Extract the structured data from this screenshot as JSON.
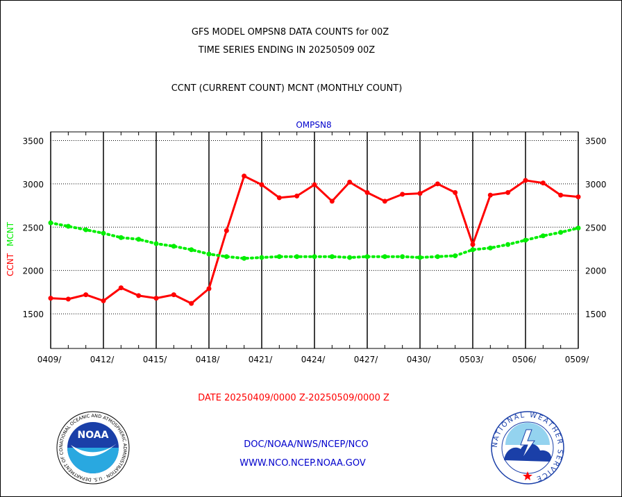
{
  "header": {
    "line1": "GFS MODEL OMPSN8 DATA COUNTS for 00Z",
    "line2": "TIME SERIES ENDING IN 20250509 00Z",
    "line3": "CCNT (CURRENT COUNT) MCNT (MONTHLY COUNT)"
  },
  "footer": {
    "date_range": "DATE 20250409/0000 Z-20250509/0000 Z",
    "org_path": "DOC/NOAA/NWS/NCEP/NCO",
    "website": "WWW.NCO.NCEP.NOAA.GOV"
  },
  "logos": {
    "noaa_text": "NOAA",
    "noaa_ring": "NATIONAL OCEANIC AND ATMOSPHERIC ADMINISTRATION · U.S. DEPARTMENT OF COMMERCE",
    "nws_ring": "NATIONAL WEATHER SERVICE"
  },
  "chart_data": {
    "type": "line",
    "title": "OMPSN8",
    "ylabel_parts": [
      {
        "text": "CCNT",
        "color": "#ff0000"
      },
      {
        "text": "MCNT",
        "color": "#00ee00"
      }
    ],
    "xlim": [
      0,
      30
    ],
    "ylim": [
      1100,
      3600
    ],
    "yticks": [
      1500,
      2000,
      2500,
      3000,
      3500
    ],
    "xtick_labels": [
      "0409/",
      "0412/",
      "0415/",
      "0418/",
      "0421/",
      "0424/",
      "0427/",
      "0430/",
      "0503/",
      "0506/",
      "0509/"
    ],
    "xtick_days": [
      0,
      3,
      6,
      9,
      12,
      15,
      18,
      21,
      24,
      27,
      30
    ],
    "grid": true,
    "series": [
      {
        "name": "CCNT",
        "color": "#ff0000",
        "style": "solid",
        "values": [
          1680,
          1670,
          1720,
          1650,
          1800,
          1710,
          1680,
          1720,
          1620,
          1790,
          2460,
          3090,
          2990,
          2840,
          2860,
          2990,
          2800,
          3020,
          2900,
          2800,
          2880,
          2890,
          3000,
          2900,
          2300,
          2870,
          2900,
          3040,
          3010,
          2870,
          2850
        ]
      },
      {
        "name": "MCNT",
        "color": "#00ee00",
        "style": "dotted",
        "values": [
          2550,
          2510,
          2470,
          2430,
          2380,
          2360,
          2310,
          2280,
          2240,
          2190,
          2160,
          2140,
          2150,
          2160,
          2160,
          2160,
          2160,
          2150,
          2160,
          2160,
          2160,
          2150,
          2160,
          2170,
          2240,
          2260,
          2300,
          2350,
          2400,
          2440,
          2490
        ]
      }
    ]
  }
}
